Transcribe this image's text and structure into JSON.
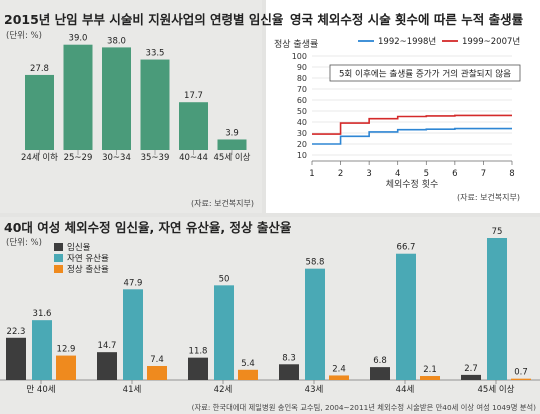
{
  "chart_data": [
    {
      "type": "bar",
      "title": "2015년 난임 부부 시술비 지원사업의 연령별 임신율",
      "unit": "(단위: %)",
      "categories": [
        "24세 이하",
        "25~29",
        "30~34",
        "35~39",
        "40~44",
        "45세 이상"
      ],
      "values": [
        27.8,
        39.0,
        38.0,
        33.5,
        17.7,
        3.9
      ],
      "value_labels": [
        "27.8",
        "39.0",
        "38.0",
        "33.5",
        "17.7",
        "3.9"
      ],
      "source": "(자료: 보건복지부)",
      "ylim": [
        0,
        40
      ],
      "colors": {
        "bar": "#4a9b7a"
      }
    },
    {
      "type": "line",
      "title": "영국 체외수정 시술 횟수에 따른 누적 출생률",
      "ylabel": "정상 출생률",
      "xlabel": "체외수정 횟수",
      "x": [
        1,
        2,
        3,
        4,
        5,
        6,
        7,
        8
      ],
      "yticks": [
        "100",
        "90",
        "80",
        "70",
        "60",
        "50",
        "40",
        "30",
        "20",
        "10"
      ],
      "ylim": [
        10,
        100
      ],
      "xlim": [
        1,
        8
      ],
      "annotation": "5회 이후에는 출생률 증가가 거의 관찰되지 않음",
      "source": "(자료: 보건복지부)",
      "series": [
        {
          "name": "1992~1998년",
          "color": "#2e86d4",
          "values": [
            20,
            27,
            31,
            33,
            33.5,
            34,
            34,
            34
          ]
        },
        {
          "name": "1999~2007년",
          "color": "#d42a2a",
          "values": [
            29,
            39,
            43,
            45,
            45.5,
            46,
            46,
            46
          ]
        }
      ]
    },
    {
      "type": "bar",
      "title": "40대 여성 체외수정 임신율, 자연 유산율, 정상 출산율",
      "unit": "(단위: %)",
      "categories": [
        "만 40세",
        "41세",
        "42세",
        "43세",
        "44세",
        "45세 이상"
      ],
      "ylim": [
        0,
        75
      ],
      "series": [
        {
          "name": "임신율",
          "color": "#3d3d3d",
          "values": [
            22.3,
            14.7,
            11.8,
            8.3,
            6.8,
            2.7
          ],
          "labels": [
            "22.3",
            "14.7",
            "11.8",
            "8.3",
            "6.8",
            "2.7"
          ]
        },
        {
          "name": "자연 유산율",
          "color": "#4aa9b5",
          "values": [
            31.6,
            47.9,
            50,
            58.8,
            66.7,
            75
          ],
          "labels": [
            "31.6",
            "47.9",
            "50",
            "58.8",
            "66.7",
            "75"
          ]
        },
        {
          "name": "정상 출산율",
          "color": "#ef8a1e",
          "values": [
            12.9,
            7.4,
            5.4,
            2.4,
            2.1,
            0.7
          ],
          "labels": [
            "12.9",
            "7.4",
            "5.4",
            "2.4",
            "2.1",
            "0.7"
          ]
        }
      ],
      "source": "(자료: 한국대에대 제일병원 송인옥 교수팀, 2004~2011년 체외수정 시술받은 만40세 이상 여성 1049명 분석)"
    }
  ]
}
